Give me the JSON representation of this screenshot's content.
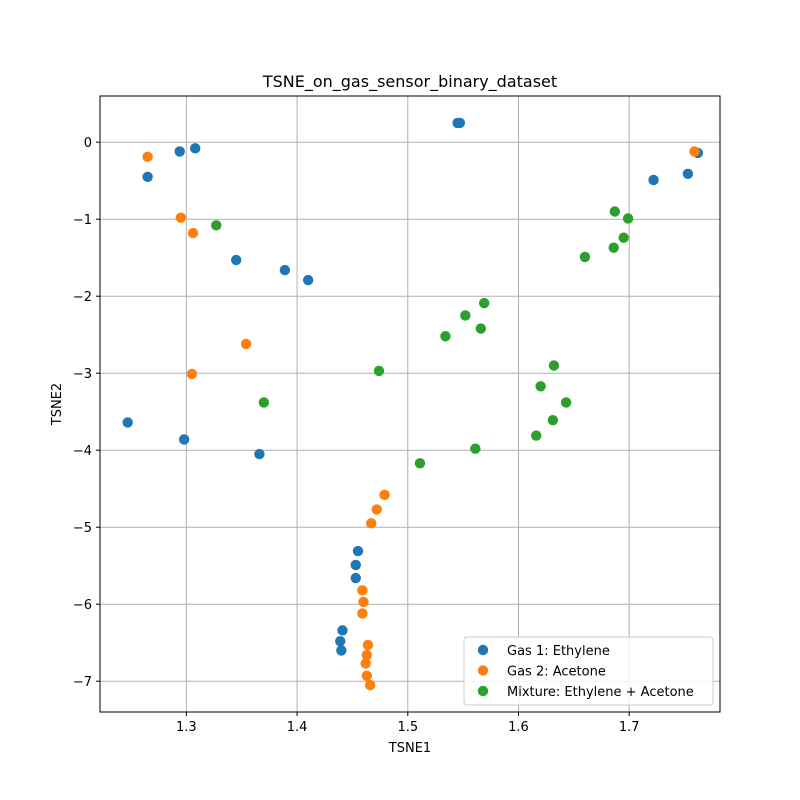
{
  "chart_data": {
    "type": "scatter",
    "title": "TSNE_on_gas_sensor_binary_dataset",
    "xlabel": "TSNE1",
    "ylabel": "TSNE2",
    "xlim": [
      1.222,
      1.782
    ],
    "ylim": [
      -7.4,
      0.6
    ],
    "xticks": [
      1.3,
      1.4,
      1.5,
      1.6,
      1.7
    ],
    "yticks": [
      0,
      -1,
      -2,
      -3,
      -4,
      -5,
      -6,
      -7
    ],
    "xtick_labels": [
      "1.3",
      "1.4",
      "1.5",
      "1.6",
      "1.7"
    ],
    "ytick_labels": [
      "0",
      "−1",
      "−2",
      "−3",
      "−4",
      "−5",
      "−6",
      "−7"
    ],
    "grid": true,
    "legend_position": "lower-right",
    "series": [
      {
        "name": "Gas 1: Ethylene",
        "color": "#1f77b4",
        "points": [
          [
            1.294,
            -0.12
          ],
          [
            1.308,
            -0.08
          ],
          [
            1.265,
            -0.45
          ],
          [
            1.545,
            0.25
          ],
          [
            1.547,
            0.25
          ],
          [
            1.762,
            -0.14
          ],
          [
            1.722,
            -0.49
          ],
          [
            1.753,
            -0.41
          ],
          [
            1.345,
            -1.53
          ],
          [
            1.389,
            -1.66
          ],
          [
            1.41,
            -1.79
          ],
          [
            1.247,
            -3.64
          ],
          [
            1.298,
            -3.86
          ],
          [
            1.366,
            -4.05
          ],
          [
            1.455,
            -5.31
          ],
          [
            1.453,
            -5.49
          ],
          [
            1.453,
            -5.66
          ],
          [
            1.441,
            -6.34
          ],
          [
            1.439,
            -6.48
          ],
          [
            1.44,
            -6.6
          ]
        ]
      },
      {
        "name": "Gas 2: Acetone",
        "color": "#ff7f0e",
        "points": [
          [
            1.265,
            -0.19
          ],
          [
            1.759,
            -0.12
          ],
          [
            1.295,
            -0.98
          ],
          [
            1.306,
            -1.18
          ],
          [
            1.354,
            -2.62
          ],
          [
            1.305,
            -3.01
          ],
          [
            1.479,
            -4.58
          ],
          [
            1.472,
            -4.77
          ],
          [
            1.467,
            -4.95
          ],
          [
            1.459,
            -5.82
          ],
          [
            1.46,
            -5.97
          ],
          [
            1.459,
            -6.12
          ],
          [
            1.464,
            -6.53
          ],
          [
            1.463,
            -6.66
          ],
          [
            1.462,
            -6.77
          ],
          [
            1.463,
            -6.93
          ],
          [
            1.466,
            -7.05
          ]
        ]
      },
      {
        "name": "Mixture: Ethylene + Acetone",
        "color": "#2ca02c",
        "points": [
          [
            1.327,
            -1.08
          ],
          [
            1.37,
            -3.38
          ],
          [
            1.474,
            -2.97
          ],
          [
            1.534,
            -2.52
          ],
          [
            1.552,
            -2.25
          ],
          [
            1.566,
            -2.42
          ],
          [
            1.569,
            -2.09
          ],
          [
            1.511,
            -4.17
          ],
          [
            1.561,
            -3.98
          ],
          [
            1.616,
            -3.81
          ],
          [
            1.631,
            -3.61
          ],
          [
            1.643,
            -3.38
          ],
          [
            1.62,
            -3.17
          ],
          [
            1.632,
            -2.9
          ],
          [
            1.66,
            -1.49
          ],
          [
            1.686,
            -1.37
          ],
          [
            1.687,
            -0.9
          ],
          [
            1.695,
            -1.24
          ],
          [
            1.699,
            -0.99
          ]
        ]
      }
    ]
  }
}
